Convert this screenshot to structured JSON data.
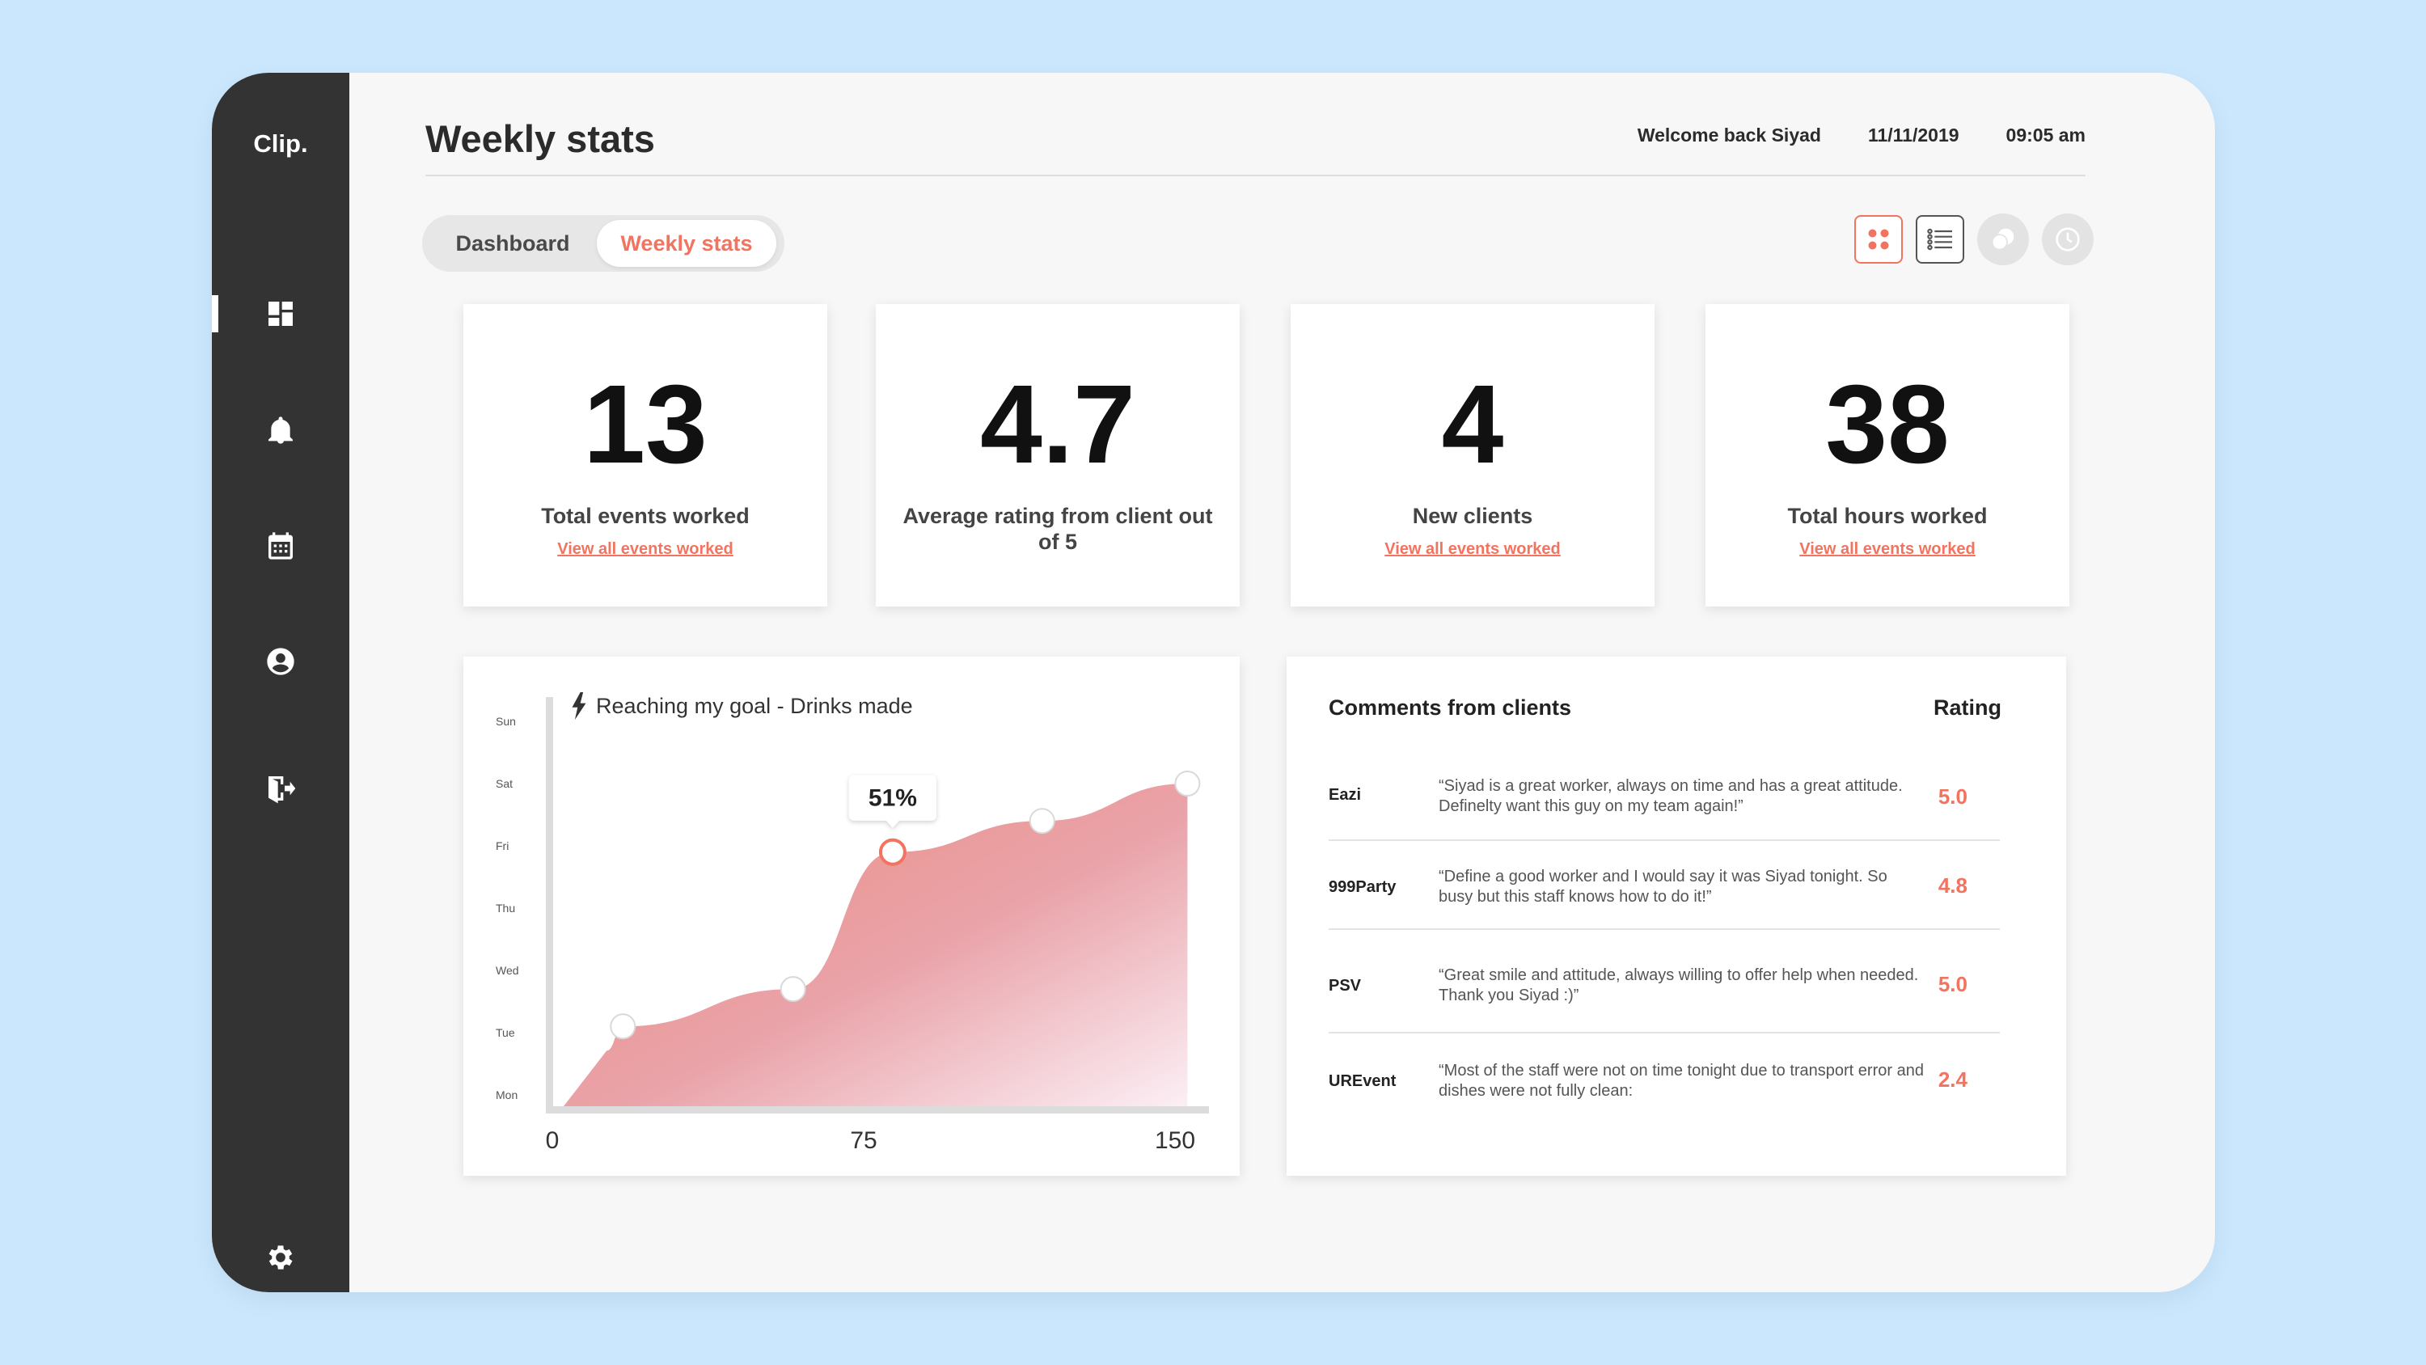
{
  "app": {
    "logo": "Clip.",
    "page_title": "Weekly stats",
    "welcome": "Welcome back Siyad",
    "date": "11/11/2019",
    "time": "09:05 am"
  },
  "sidebar": {
    "items": [
      {
        "name": "dashboard",
        "icon": "dashboard-icon",
        "active": true
      },
      {
        "name": "notifications",
        "icon": "bell-icon",
        "active": false
      },
      {
        "name": "calendar",
        "icon": "calendar-icon",
        "active": false
      },
      {
        "name": "profile",
        "icon": "user-icon",
        "active": false
      },
      {
        "name": "logout",
        "icon": "logout-icon",
        "active": false
      },
      {
        "name": "settings",
        "icon": "gear-icon",
        "active": false
      }
    ]
  },
  "tabs": [
    {
      "label": "Dashboard",
      "active": false
    },
    {
      "label": "Weekly stats",
      "active": true
    }
  ],
  "view_buttons": [
    "grid-icon",
    "list-icon",
    "chat-icon",
    "clock-icon"
  ],
  "stats": [
    {
      "value": "13",
      "label": "Total events worked",
      "link": "View all events worked"
    },
    {
      "value": "4.7",
      "label": "Average rating from client out of 5",
      "link": ""
    },
    {
      "value": "4",
      "label": "New clients",
      "link": "View all events worked"
    },
    {
      "value": "38",
      "label": "Total hours worked",
      "link": "View all events worked"
    }
  ],
  "chart_data": {
    "type": "area",
    "title": "Reaching my goal - Drinks made",
    "icon": "lightning-icon",
    "y_categories": [
      "Mon",
      "Tue",
      "Wed",
      "Thu",
      "Fri",
      "Sat",
      "Sun"
    ],
    "x_ticks": [
      "0",
      "75",
      "150"
    ],
    "xlim": [
      0,
      150
    ],
    "points": [
      {
        "x": 17,
        "y": 1.1
      },
      {
        "x": 58,
        "y": 1.7
      },
      {
        "x": 82,
        "y": 3.9
      },
      {
        "x": 118,
        "y": 4.4
      },
      {
        "x": 153,
        "y": 5.0
      }
    ],
    "annotation": {
      "point_index": 2,
      "label": "51%"
    },
    "colors": {
      "fill_top": "#ee8a7c",
      "fill_bottom": "#f5dce8",
      "axis": "#dcdcdc"
    },
    "grid": false
  },
  "comments": {
    "title": "Comments from clients",
    "rating_header": "Rating",
    "rows": [
      {
        "client": "Eazi",
        "text": "“Siyad is a great worker, always on time and has a great attitude. Definelty want this guy on my team again!”",
        "rating": "5.0"
      },
      {
        "client": "999Party",
        "text": "“Define a good worker and I would say it was Siyad tonight. So busy but this staff knows how to do it!”",
        "rating": "4.8"
      },
      {
        "client": "PSV",
        "text": "“Great smile and attitude, always willing to offer help when needed. Thank you Siyad :)”",
        "rating": "5.0"
      },
      {
        "client": "UREvent",
        "text": "“Most of the staff were not on time tonight due to transport error and dishes were not fully clean:",
        "rating": "2.4"
      }
    ]
  },
  "colors": {
    "accent": "#f2735f",
    "sidebar": "#333333",
    "background": "#cae7fd"
  }
}
